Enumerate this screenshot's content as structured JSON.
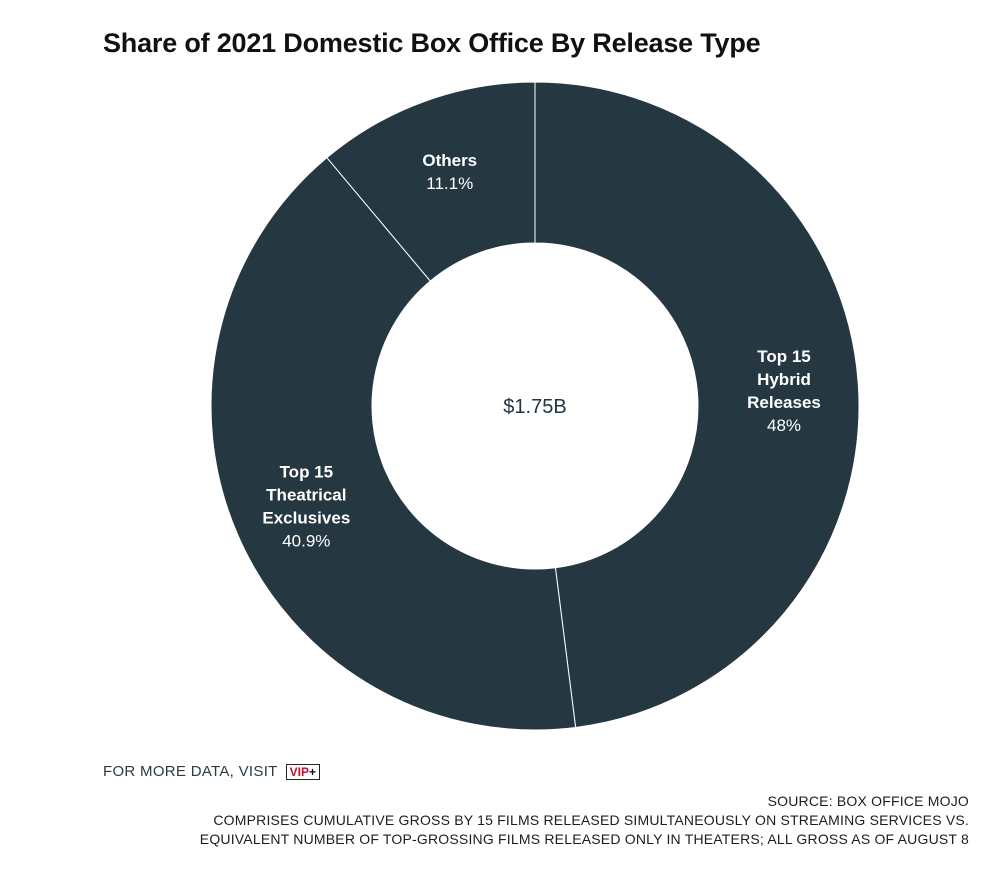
{
  "chart_data": {
    "type": "pie",
    "title": "Share of 2021 Domestic Box Office By Release Type",
    "center_label": "$1.75B",
    "slices": [
      {
        "label": "Top 15 Hybrid Releases",
        "label_lines": [
          "Top 15",
          "Hybrid",
          "Releases"
        ],
        "value": 48,
        "display": "48%",
        "color": "#253842"
      },
      {
        "label": "Top 15 Theatrical Exclusives",
        "label_lines": [
          "Top 15",
          "Theatrical",
          "Exclusives"
        ],
        "value": 40.9,
        "display": "40.9%",
        "color": "#253842"
      },
      {
        "label": "Others",
        "label_lines": [
          "Others"
        ],
        "value": 11.1,
        "display": "11.1%",
        "color": "#253842"
      }
    ],
    "separator_color": "#ffffff"
  },
  "footer": {
    "more_data": "FOR MORE DATA, VISIT",
    "vip_text": "VIP",
    "vip_plus": "+",
    "source": "SOURCE: BOX OFFICE MOJO",
    "note_line1": "COMPRISES CUMULATIVE GROSS BY 15 FILMS RELEASED SIMULTANEOUSLY ON STREAMING SERVICES VS.",
    "note_line2": "EQUIVALENT NUMBER OF TOP-GROSSING FILMS RELEASED ONLY IN THEATERS; ALL GROSS AS OF AUGUST 8"
  }
}
